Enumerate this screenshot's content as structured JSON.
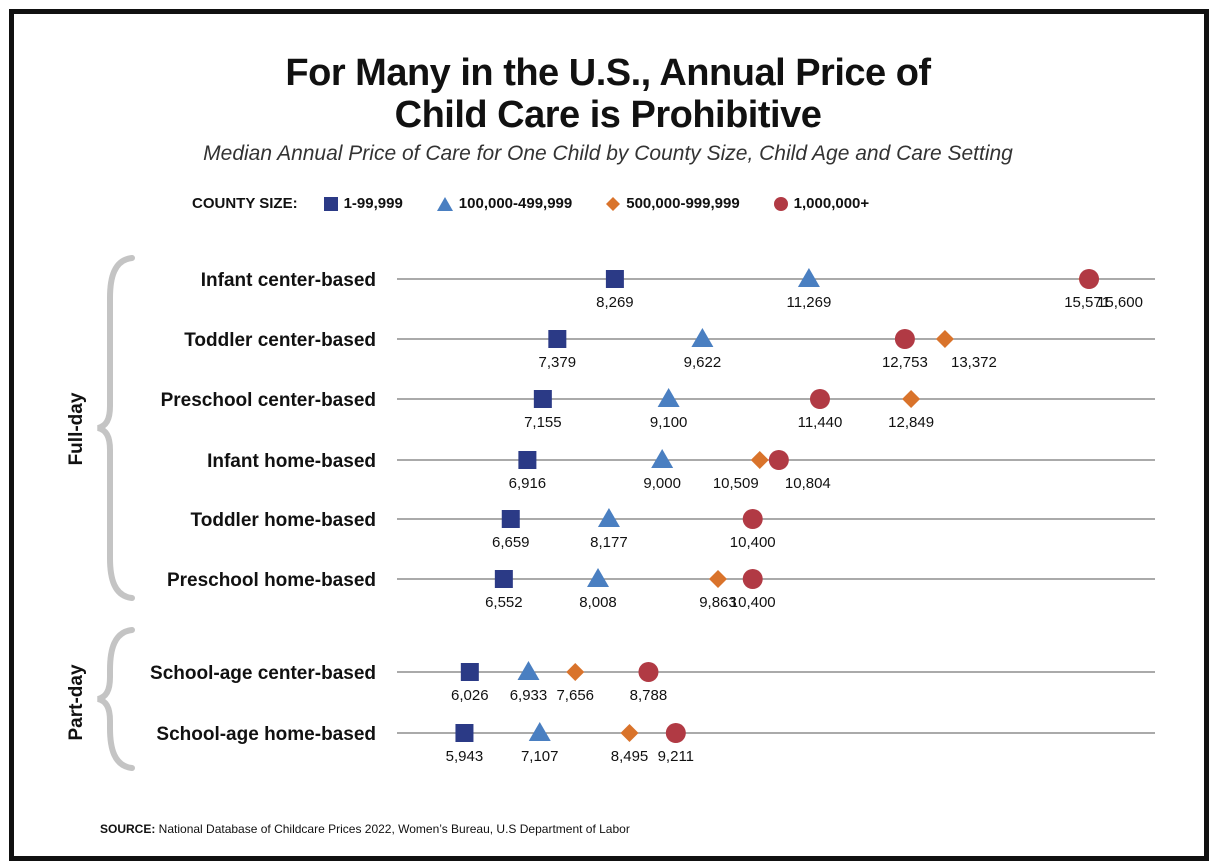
{
  "chart_data": {
    "type": "scatter",
    "title": "For Many in the U.S., Annual Price of Child Care is Prohibitive",
    "title_lines": [
      "For Many in the U.S., Annual Price of",
      "Child Care is Prohibitive"
    ],
    "subtitle": "Median Annual Price of Care for One Child by County Size, Child Age and Care Setting",
    "legend_title": "COUNTY SIZE:",
    "legend_placement": "top",
    "xlim": [
      4900,
      16620
    ],
    "grid": false,
    "groups": [
      {
        "name": "Full-day",
        "rows": [
          0,
          1,
          2,
          3,
          4,
          5
        ]
      },
      {
        "name": "Part-day",
        "rows": [
          6,
          7
        ]
      }
    ],
    "series": [
      {
        "name": "1-99,999",
        "marker": "square",
        "color": "#2b3a86"
      },
      {
        "name": "100,000-499,999",
        "marker": "triangle",
        "color": "#4a7fc1"
      },
      {
        "name": "500,000-999,999",
        "marker": "diamond",
        "color": "#d9732b"
      },
      {
        "name": "1,000,000+",
        "marker": "circle",
        "color": "#b13a44"
      }
    ],
    "categories": [
      "Infant center-based",
      "Toddler center-based",
      "Preschool center-based",
      "Infant home-based",
      "Toddler home-based",
      "Preschool home-based",
      "School-age center-based",
      "School-age home-based"
    ],
    "values": [
      [
        8269,
        11269,
        15571,
        15600
      ],
      [
        7379,
        9622,
        13372,
        12753
      ],
      [
        7155,
        9100,
        12849,
        11440
      ],
      [
        6916,
        9000,
        10509,
        10804
      ],
      [
        6659,
        8177,
        10400,
        10400
      ],
      [
        6552,
        8008,
        9863,
        10400
      ],
      [
        6026,
        6933,
        7656,
        8788
      ],
      [
        5943,
        7107,
        8495,
        9211
      ]
    ],
    "value_labels": [
      [
        "8,269",
        "11,269",
        "15,571",
        "15,600"
      ],
      [
        "7,379",
        "9,622",
        "13,372",
        "12,753"
      ],
      [
        "7,155",
        "9,100",
        "12,849",
        "11,440"
      ],
      [
        "6,916",
        "9,000",
        "10,509",
        "10,804"
      ],
      [
        "6,659",
        "8,177",
        "",
        "10,400"
      ],
      [
        "6,552",
        "8,008",
        "9,863",
        "10,400"
      ],
      [
        "6,026",
        "6,933",
        "7,656",
        "8,788"
      ],
      [
        "5,943",
        "7,107",
        "8,495",
        "9,211"
      ]
    ]
  },
  "source": {
    "label": "SOURCE:",
    "text": " National Database of Childcare Prices 2022, Women’s Bureau, U.S Department of Labor"
  }
}
